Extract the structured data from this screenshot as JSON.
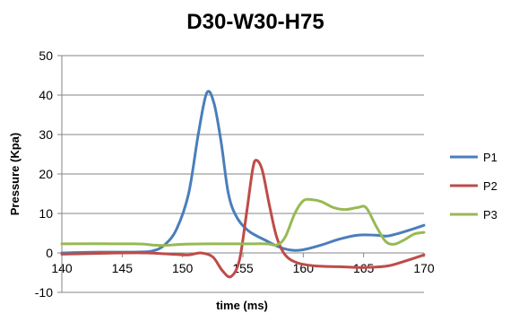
{
  "chart_data": {
    "type": "line",
    "title": "D30-W30-H75",
    "xlabel": "time (ms)",
    "ylabel": "Pressure (Kpa)",
    "xlim": [
      140,
      170
    ],
    "ylim": [
      -10,
      50
    ],
    "xticks": [
      140,
      145,
      150,
      155,
      160,
      165,
      170
    ],
    "yticks": [
      -10,
      0,
      10,
      20,
      30,
      40,
      50
    ],
    "grid": "horizontal",
    "legend_position": "right",
    "series": [
      {
        "name": "P1",
        "color": "#4a7ebb",
        "points": [
          [
            140,
            0
          ],
          [
            143,
            0.2
          ],
          [
            146,
            0.2
          ],
          [
            147.5,
            0.5
          ],
          [
            148.5,
            2
          ],
          [
            149.5,
            6
          ],
          [
            150.5,
            15
          ],
          [
            151.3,
            30
          ],
          [
            152,
            40.5
          ],
          [
            152.6,
            38
          ],
          [
            153.2,
            28
          ],
          [
            153.8,
            15
          ],
          [
            154.5,
            9
          ],
          [
            155.5,
            5.5
          ],
          [
            157,
            3
          ],
          [
            158,
            1.5
          ],
          [
            159,
            0.7
          ],
          [
            160,
            0.8
          ],
          [
            161.5,
            2
          ],
          [
            163,
            3.5
          ],
          [
            164.5,
            4.5
          ],
          [
            166,
            4.5
          ],
          [
            167,
            4.3
          ],
          [
            168.5,
            5.5
          ],
          [
            170,
            7
          ]
        ]
      },
      {
        "name": "P2",
        "color": "#be4b48",
        "points": [
          [
            140,
            -0.3
          ],
          [
            145,
            0
          ],
          [
            147,
            0
          ],
          [
            149,
            -0.3
          ],
          [
            150.5,
            -0.5
          ],
          [
            151.5,
            0
          ],
          [
            152.5,
            -1
          ],
          [
            153.3,
            -4.5
          ],
          [
            154,
            -6
          ],
          [
            154.7,
            -2
          ],
          [
            155.3,
            10
          ],
          [
            155.8,
            21
          ],
          [
            156.1,
            23.5
          ],
          [
            156.6,
            21
          ],
          [
            157.2,
            12
          ],
          [
            157.8,
            4
          ],
          [
            158.5,
            -0.5
          ],
          [
            159.5,
            -2.5
          ],
          [
            161,
            -3.3
          ],
          [
            163,
            -3.5
          ],
          [
            165,
            -3.7
          ],
          [
            167,
            -3.3
          ],
          [
            168.5,
            -2
          ],
          [
            170,
            -0.5
          ]
        ]
      },
      {
        "name": "P3",
        "color": "#98b954",
        "points": [
          [
            140,
            2.3
          ],
          [
            146,
            2.3
          ],
          [
            147.5,
            2
          ],
          [
            148.5,
            1.9
          ],
          [
            150,
            2.2
          ],
          [
            152,
            2.3
          ],
          [
            155,
            2.3
          ],
          [
            157,
            2.3
          ],
          [
            157.8,
            2
          ],
          [
            158.5,
            4
          ],
          [
            159.3,
            10
          ],
          [
            160,
            13.2
          ],
          [
            160.7,
            13.5
          ],
          [
            161.5,
            13
          ],
          [
            162.5,
            11.5
          ],
          [
            163.5,
            11
          ],
          [
            164.5,
            11.5
          ],
          [
            165.2,
            11.5
          ],
          [
            166,
            7
          ],
          [
            166.8,
            3
          ],
          [
            167.5,
            2.2
          ],
          [
            168.3,
            3.2
          ],
          [
            169.2,
            4.8
          ],
          [
            170,
            5.2
          ]
        ]
      }
    ]
  }
}
